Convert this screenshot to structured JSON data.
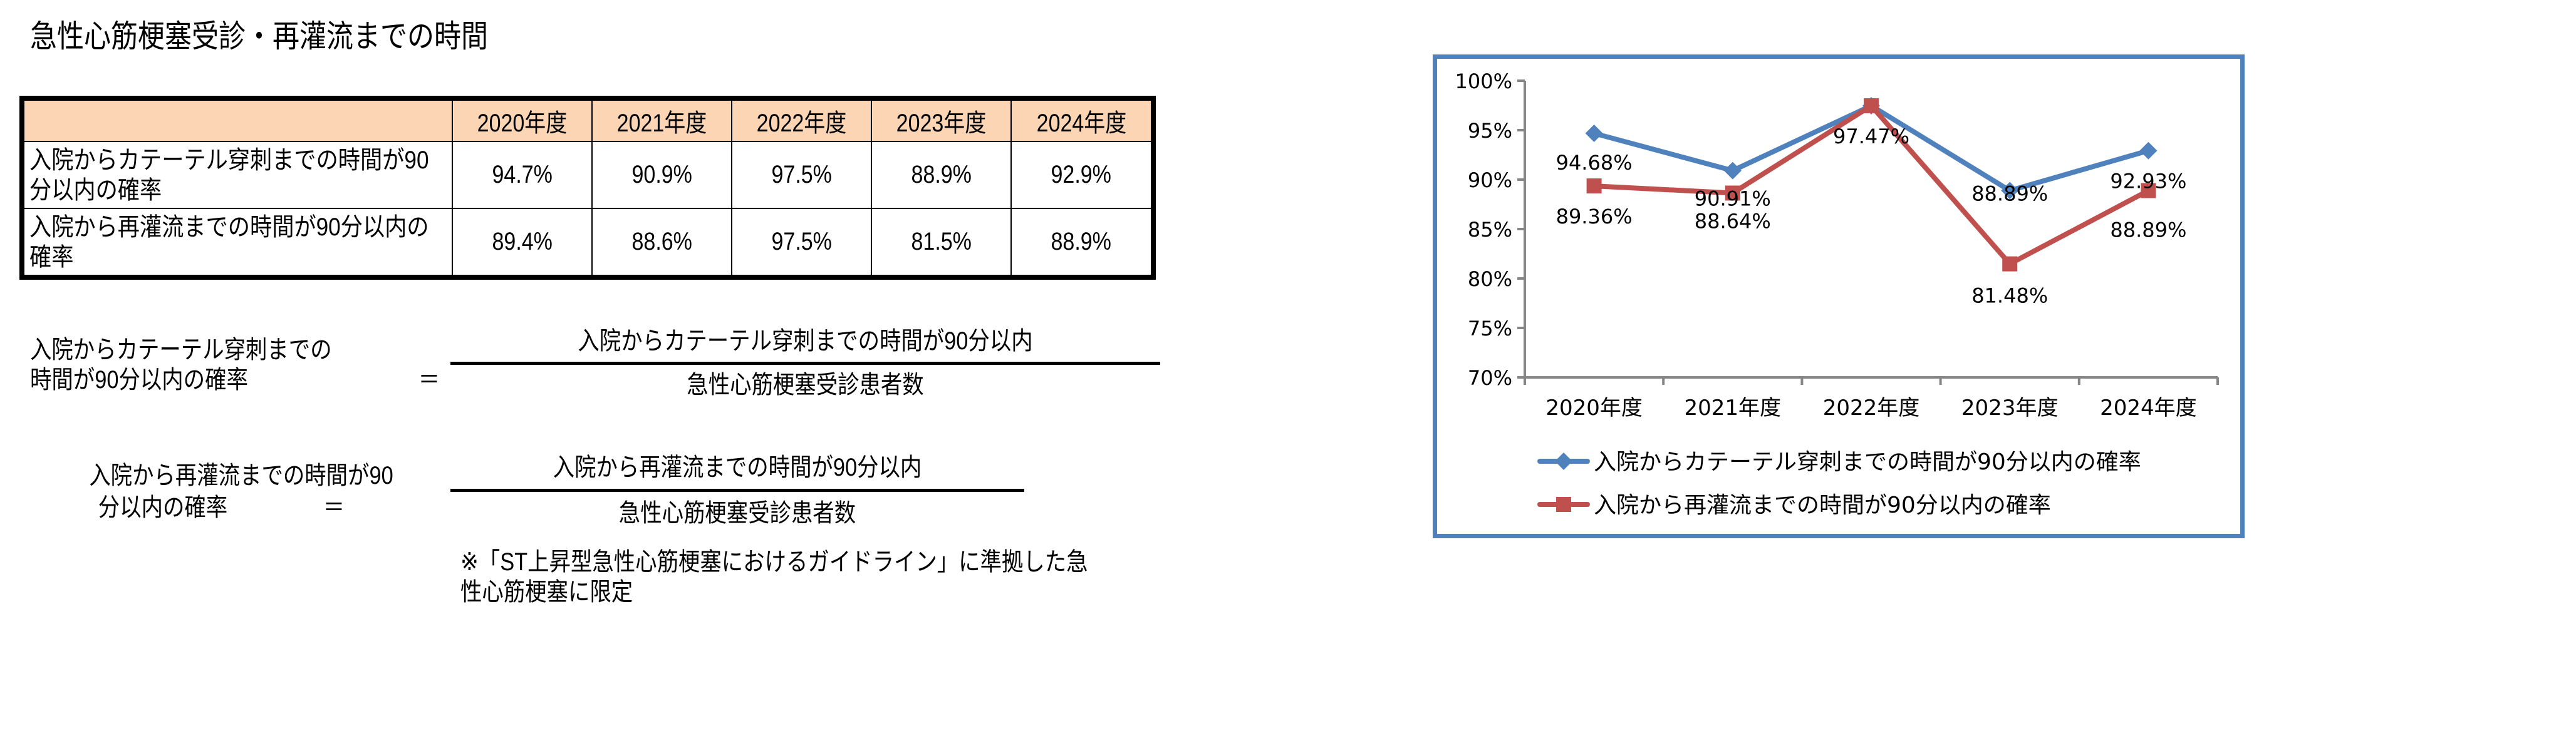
{
  "title": "急性心筋梗塞受診・再灌流までの時間",
  "table": {
    "header": [
      "",
      "2020年度",
      "2021年度",
      "2022年度",
      "2023年度",
      "2024年度"
    ],
    "header_bg": "#FCD5B4",
    "rows": [
      {
        "label": "入院からカテーテル穿刺までの時間が90分以内の確率",
        "values": [
          "94.7%",
          "90.9%",
          "97.5%",
          "88.9%",
          "92.9%"
        ]
      },
      {
        "label": "入院から再灌流までの時間が90分以内の確率",
        "values": [
          "89.4%",
          "88.6%",
          "97.5%",
          "81.5%",
          "88.9%"
        ]
      }
    ]
  },
  "formulas": [
    {
      "lhs_line1": "入院からカテーテル穿刺までの",
      "lhs_line2": "時間が90分以内の確率",
      "equals": "＝",
      "numerator": "入院からカテーテル穿刺までの時間が90分以内",
      "denominator": "急性心筋梗塞受診患者数"
    },
    {
      "lhs_line1": "入院から再灌流までの時間が90",
      "lhs_line2": "分以内の確率",
      "equals": "＝",
      "numerator": "入院から再灌流までの時間が90分以内",
      "denominator": "急性心筋梗塞受診患者数"
    }
  ],
  "footnote": {
    "line1": "※「ST上昇型急性心筋梗塞におけるガイドライン」に準拠した急",
    "line2": "性心筋梗塞に限定"
  },
  "chart_data": {
    "type": "line",
    "title": "",
    "xlabel": "",
    "ylabel": "",
    "categories": [
      "2020年度",
      "2021年度",
      "2022年度",
      "2023年度",
      "2024年度"
    ],
    "series": [
      {
        "name": "入院からカテーテル穿刺までの時間が90分以内の確率",
        "values": [
          94.68,
          90.91,
          97.47,
          88.89,
          92.93
        ],
        "labels": [
          "94.68%",
          "90.91%",
          "97.47%",
          "88.89%",
          "92.93%"
        ],
        "color": "#4F81BD",
        "marker": "diamond"
      },
      {
        "name": "入院から再灌流までの時間が90分以内の確率",
        "values": [
          89.36,
          88.64,
          97.47,
          81.48,
          88.89
        ],
        "labels": [
          "89.36%",
          "88.64%",
          "",
          "81.48%",
          "88.89%"
        ],
        "color": "#C0504D",
        "marker": "square"
      }
    ],
    "yticks": [
      "100%",
      "95%",
      "90%",
      "85%",
      "80%",
      "75%",
      "70%"
    ],
    "ylim": [
      70,
      100
    ],
    "grid": false,
    "legend_position": "bottom",
    "frame_color": "#4F81BD",
    "axis_color": "#868686"
  }
}
